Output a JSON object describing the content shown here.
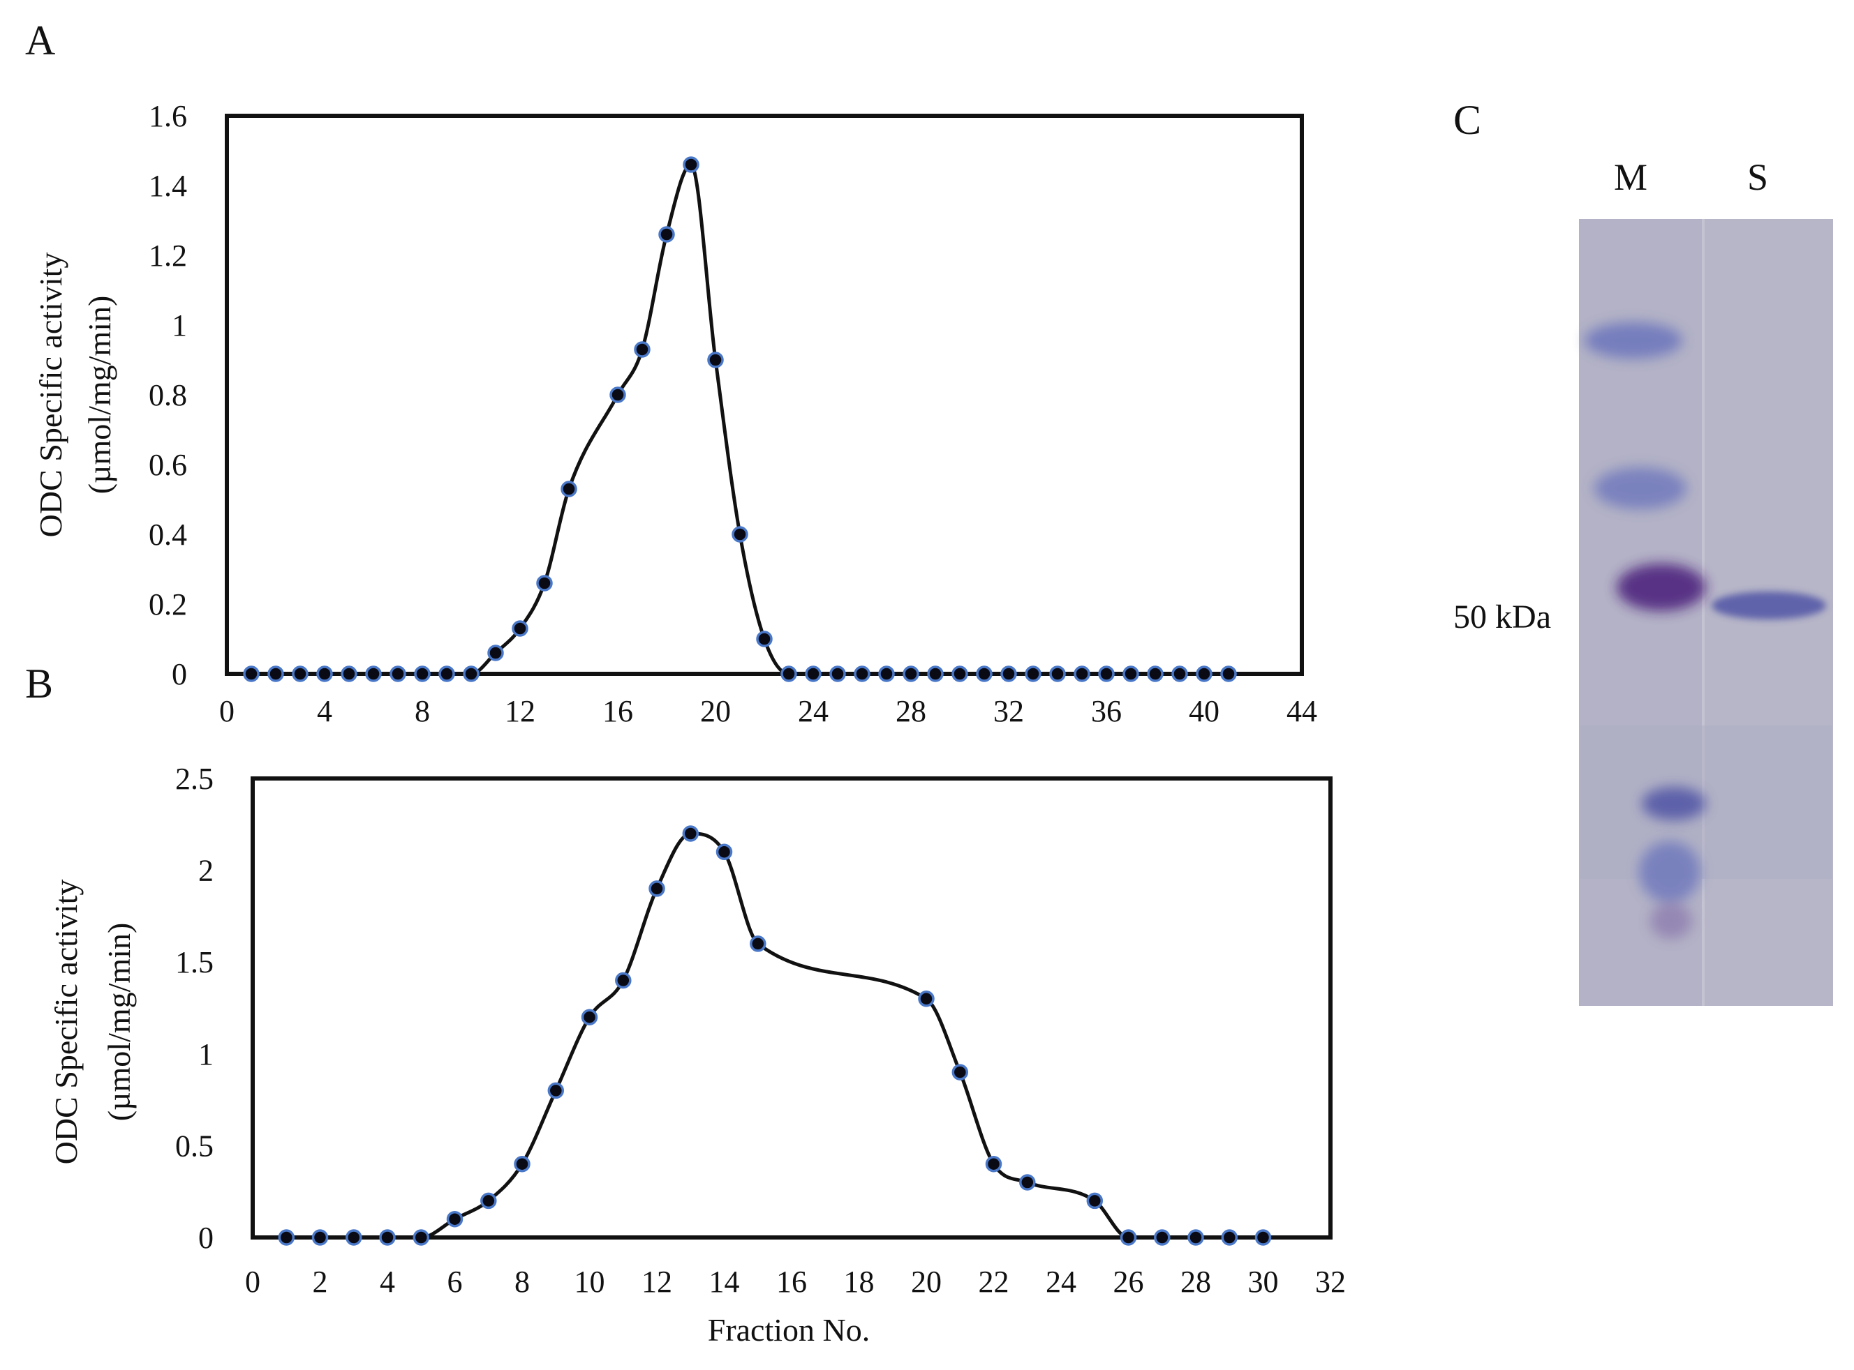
{
  "figure": {
    "panels": [
      "A",
      "B",
      "C"
    ]
  },
  "chart_data": [
    {
      "panel": "A",
      "type": "line",
      "smooth": true,
      "ylabel_line1": "ODC Specific activity",
      "ylabel_line2": "(µmol/mg/min)",
      "xlabel": "",
      "xlim": [
        0,
        44
      ],
      "ylim": [
        0,
        1.6
      ],
      "xticks": [
        0,
        4,
        8,
        12,
        16,
        20,
        24,
        28,
        32,
        36,
        40,
        44
      ],
      "yticks": [
        0,
        0.2,
        0.4,
        0.6,
        0.8,
        1,
        1.2,
        1.4,
        1.6
      ],
      "ytick_labels": [
        "0",
        "0.2",
        "0.4",
        "0.6",
        "0.8",
        "1",
        "1.2",
        "1.4",
        "1.6"
      ],
      "x": [
        1,
        2,
        3,
        4,
        5,
        6,
        7,
        8,
        9,
        10,
        11,
        12,
        13,
        14,
        15,
        16,
        17,
        18,
        19,
        20,
        21,
        22,
        23,
        24,
        25,
        26,
        27,
        28,
        29,
        30,
        31,
        32,
        33,
        34,
        35,
        36,
        37,
        38,
        39,
        40,
        41
      ],
      "y": [
        0,
        0,
        0,
        0,
        0,
        0,
        0,
        0,
        0,
        0,
        0.06,
        0.13,
        0.26,
        0.53,
        null,
        0.8,
        0.93,
        1.26,
        1.46,
        0.9,
        0.4,
        0.1,
        0,
        0,
        0,
        0,
        0,
        0,
        0,
        0,
        0,
        0,
        0,
        0,
        0,
        0,
        0,
        0,
        0,
        0,
        0
      ],
      "grid": false,
      "marker": "circle"
    },
    {
      "panel": "B",
      "type": "line",
      "smooth": true,
      "ylabel_line1": "ODC Specific activity",
      "ylabel_line2": "(µmol/mg/min)",
      "xlabel": "Fraction No.",
      "xlim": [
        0,
        32
      ],
      "ylim": [
        0,
        2.5
      ],
      "xticks": [
        0,
        2,
        4,
        6,
        8,
        10,
        12,
        14,
        16,
        18,
        20,
        22,
        24,
        26,
        28,
        30,
        32
      ],
      "yticks": [
        0,
        0.5,
        1,
        1.5,
        2,
        2.5
      ],
      "ytick_labels": [
        "0",
        "0.5",
        "1",
        "1.5",
        "2",
        "2.5"
      ],
      "x": [
        1,
        2,
        3,
        4,
        5,
        6,
        7,
        8,
        9,
        10,
        11,
        12,
        13,
        14,
        15,
        20,
        21,
        22,
        23,
        25,
        26,
        27,
        28,
        29,
        30
      ],
      "y": [
        0,
        0,
        0,
        0,
        0,
        0.1,
        0.2,
        0.4,
        0.8,
        1.2,
        1.4,
        1.9,
        2.2,
        2.1,
        1.6,
        1.3,
        0.9,
        0.4,
        0.3,
        0.2,
        0,
        0,
        0,
        0,
        0
      ],
      "grid": false,
      "marker": "circle"
    }
  ],
  "gel": {
    "panel": "C",
    "lanes": [
      {
        "label": "M",
        "bands": [
          {
            "name": "marker-band-1",
            "intensity": 0.55
          },
          {
            "name": "marker-band-2",
            "intensity": 0.5
          },
          {
            "name": "marker-band-3",
            "intensity": 0.9
          },
          {
            "name": "marker-band-4",
            "intensity": 0.6
          },
          {
            "name": "marker-band-5",
            "intensity": 0.5
          },
          {
            "name": "marker-band-6",
            "intensity": 0.35
          }
        ]
      },
      {
        "label": "S",
        "bands": [
          {
            "name": "sample-band",
            "intensity": 0.6
          }
        ]
      }
    ],
    "size_marker_label": "50 kDa"
  },
  "colors": {
    "line": "#111111",
    "marker_fill": "#0a0a14",
    "marker_edge": "#4a78c8",
    "gel_background": "#b3b2c6",
    "band": "#3a3f9e",
    "band_dark": "#4a1f7a"
  }
}
